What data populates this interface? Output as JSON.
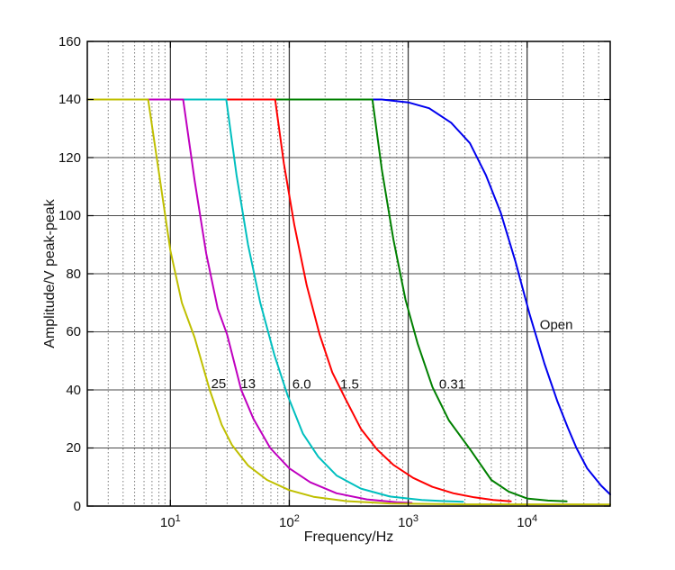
{
  "chart_data": {
    "type": "line",
    "title": "",
    "xlabel": "Frequency/Hz",
    "ylabel": "Amplitude/V peak-peak",
    "x_scale": "log",
    "xlim": [
      2,
      50000
    ],
    "ylim": [
      0,
      160
    ],
    "grid": true,
    "y_ticks": [
      0,
      20,
      40,
      60,
      80,
      100,
      120,
      140,
      160
    ],
    "x_major_ticks": [
      10,
      100,
      1000,
      10000
    ],
    "x_tick_labels": [
      {
        "base": "10",
        "exp": "1"
      },
      {
        "base": "10",
        "exp": "2"
      },
      {
        "base": "10",
        "exp": "3"
      },
      {
        "base": "10",
        "exp": "4"
      }
    ],
    "series": [
      {
        "name": "open",
        "label": "Open",
        "color": "#0000EE",
        "points": [
          [
            2,
            140
          ],
          [
            600,
            140
          ],
          [
            1000,
            139
          ],
          [
            1500,
            137
          ],
          [
            2300,
            132
          ],
          [
            3300,
            125
          ],
          [
            4500,
            114
          ],
          [
            6000,
            101
          ],
          [
            8000,
            84
          ],
          [
            10500,
            66
          ],
          [
            14000,
            49
          ],
          [
            18000,
            36
          ],
          [
            22000,
            27
          ],
          [
            26000,
            20
          ],
          [
            32000,
            13
          ],
          [
            42000,
            7
          ],
          [
            50000,
            4
          ]
        ]
      },
      {
        "name": "c0_31",
        "label": "0.31",
        "color": "#008000",
        "points": [
          [
            2,
            140
          ],
          [
            500,
            140
          ],
          [
            600,
            116
          ],
          [
            750,
            92
          ],
          [
            950,
            71
          ],
          [
            1200,
            56
          ],
          [
            1600,
            41
          ],
          [
            2200,
            29.5
          ],
          [
            3320,
            19.5
          ],
          [
            5000,
            9
          ],
          [
            7000,
            5
          ],
          [
            10000,
            2.6
          ],
          [
            15000,
            1.9
          ],
          [
            21500,
            1.6
          ]
        ]
      },
      {
        "name": "c1_5",
        "label": "1.5",
        "color": "#FF0000",
        "points": [
          [
            2,
            140
          ],
          [
            76,
            140
          ],
          [
            90,
            118
          ],
          [
            110,
            97
          ],
          [
            140,
            76
          ],
          [
            180,
            59
          ],
          [
            230,
            46
          ],
          [
            296,
            37
          ],
          [
            400,
            26.6
          ],
          [
            544,
            19.6
          ],
          [
            750,
            14.2
          ],
          [
            1100,
            9.7
          ],
          [
            1600,
            6.6
          ],
          [
            2400,
            4.4
          ],
          [
            3600,
            3.0
          ],
          [
            5200,
            2.1
          ],
          [
            7300,
            1.6
          ]
        ]
      },
      {
        "name": "c6_0",
        "label": "6.0",
        "color": "#00BFBF",
        "points": [
          [
            2,
            140
          ],
          [
            29.5,
            140
          ],
          [
            36,
            114
          ],
          [
            45,
            90
          ],
          [
            57,
            70
          ],
          [
            75,
            52
          ],
          [
            97,
            38
          ],
          [
            130,
            25
          ],
          [
            175,
            17
          ],
          [
            250,
            10.5
          ],
          [
            400,
            6
          ],
          [
            700,
            3.3
          ],
          [
            1300,
            2.1
          ],
          [
            2000,
            1.7
          ],
          [
            2900,
            1.5
          ]
        ]
      },
      {
        "name": "c13",
        "label": "13",
        "color": "#BF00BF",
        "points": [
          [
            2,
            140
          ],
          [
            12.8,
            140
          ],
          [
            16,
            112
          ],
          [
            20,
            87
          ],
          [
            25,
            68
          ],
          [
            30,
            59
          ],
          [
            39.4,
            40
          ],
          [
            50,
            30
          ],
          [
            69,
            20
          ],
          [
            100,
            13
          ],
          [
            150,
            8.2
          ],
          [
            250,
            4.4
          ],
          [
            450,
            2.3
          ],
          [
            800,
            1.3
          ],
          [
            1070,
            1.1
          ]
        ]
      },
      {
        "name": "c25",
        "label": "25",
        "color": "#BFBF00",
        "points": [
          [
            2,
            140
          ],
          [
            6.5,
            140
          ],
          [
            8,
            115
          ],
          [
            10,
            88
          ],
          [
            12.5,
            70
          ],
          [
            16,
            58
          ],
          [
            21.4,
            40
          ],
          [
            27,
            28
          ],
          [
            33,
            21
          ],
          [
            45,
            14
          ],
          [
            65,
            9
          ],
          [
            100,
            5.5
          ],
          [
            160,
            3.2
          ],
          [
            300,
            1.7
          ],
          [
            700,
            0.9
          ],
          [
            3000,
            0.6
          ],
          [
            50000,
            0.55
          ]
        ]
      }
    ],
    "annotations": [
      {
        "text": "25",
        "f": 22,
        "A": 40.6
      },
      {
        "text": "13",
        "f": 39,
        "A": 40.6
      },
      {
        "text": "6.0",
        "f": 106,
        "A": 40.4
      },
      {
        "text": "1.5",
        "f": 268,
        "A": 40.4
      },
      {
        "text": "0.31",
        "f": 1820,
        "A": 40.4
      },
      {
        "text": "Open",
        "f": 12800,
        "A": 61.0
      }
    ],
    "legend_position": "none",
    "colors": {
      "grid_minor": "#7a7a7a",
      "grid_major": "#3d3d3d",
      "grid_horizontal": "#4a4a4a",
      "axis_border": "#000000"
    }
  }
}
